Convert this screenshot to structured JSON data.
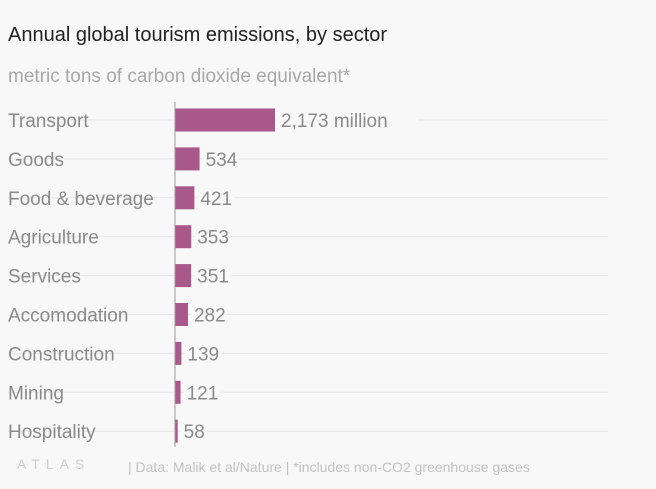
{
  "chart_data": {
    "type": "bar",
    "orientation": "horizontal",
    "title": "Annual global tourism emissions, by sector",
    "subtitle": "metric tons of carbon dioxide equivalent*",
    "unit_suffix_first": " million",
    "categories": [
      "Transport",
      "Goods",
      "Food & beverage",
      "Agriculture",
      "Services",
      "Accomodation",
      "Construction",
      "Mining",
      "Hospitality"
    ],
    "values": [
      2173,
      534,
      421,
      353,
      351,
      282,
      139,
      121,
      58
    ],
    "value_labels": [
      "2,173 million",
      "534",
      "421",
      "353",
      "351",
      "282",
      "139",
      "121",
      "58"
    ],
    "xlim": [
      0,
      2173
    ],
    "grid": true,
    "bar_color": "#a8588a"
  },
  "footer": {
    "logo": "ATLAS",
    "source": "| Data: Malik et al/Nature | *includes non-CO2 greenhouse gases"
  },
  "colors": {
    "background": "#f8f8f8",
    "title": "#222222",
    "label": "#8a8a8a",
    "muted": "#a8a8a8",
    "grid": "#e6e6e6",
    "axis": "#9a9a9a"
  }
}
